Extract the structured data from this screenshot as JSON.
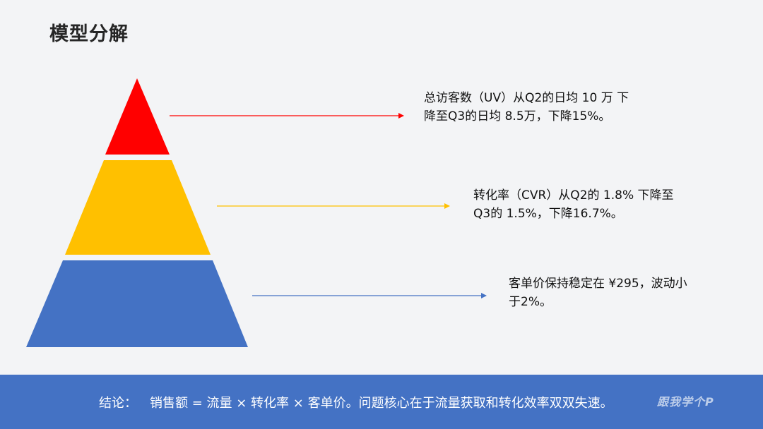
{
  "title": "模型分解",
  "pyramid": {
    "levels": [
      {
        "color": "#ff0000",
        "arrow_color": "#ff0000",
        "text": "总访客数（UV）从Q2的日均 10 万 下降至Q3的日均 8.5万，下降15%。"
      },
      {
        "color": "#ffc000",
        "arrow_color": "#ffc000",
        "text": "转化率（CVR）从Q2的 1.8% 下降至Q3的 1.5%，下降16.7%。"
      },
      {
        "color": "#4472c4",
        "arrow_color": "#4472c4",
        "text": "客单价保持稳定在 ¥295，波动小于2%。"
      }
    ]
  },
  "footer": {
    "label": "结论：",
    "text": "销售额 = 流量 × 转化率 × 客单价。问题核心在于流量获取和转化效率双双失速。",
    "watermark": "跟我学个P"
  }
}
